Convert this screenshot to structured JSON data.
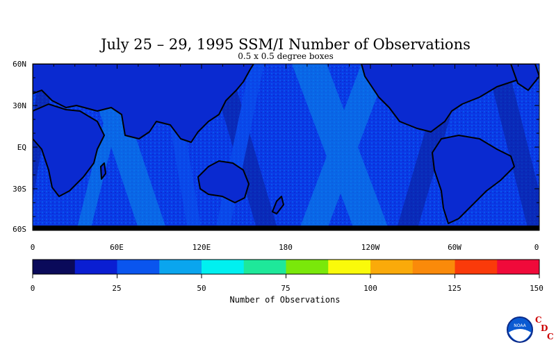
{
  "title": "July 25 – 29, 1995 SSM/I Number of Observations",
  "subtitle": "0.5 x 0.5 degree boxes",
  "y_axis_labels": [
    "60N",
    "30N",
    "EQ",
    "30S",
    "60S"
  ],
  "x_axis_labels": [
    "0",
    "60E",
    "120E",
    "180",
    "120W",
    "60W",
    "0"
  ],
  "colorbar": {
    "title": "Number of Observations",
    "tick_labels": [
      "0",
      "25",
      "50",
      "75",
      "100",
      "125",
      "150"
    ],
    "colors": [
      "#0a0a5a",
      "#0a1ed2",
      "#0a55ee",
      "#0aa5ee",
      "#00f0f0",
      "#1ee89a",
      "#7ae80a",
      "#fafa0a",
      "#faaa0a",
      "#fa8a0a",
      "#fa3a0a",
      "#f00a3a"
    ]
  },
  "logo": {
    "name": "NOAA",
    "letters": [
      "C",
      "D",
      "C"
    ]
  },
  "colors": {
    "ocean_base": "#0a3ae6",
    "swath_light": "#0a8ae8",
    "swath_dark": "#0a1e96",
    "land": "#0a20c0",
    "coast": "#000000",
    "accent_red": "#cc0000"
  }
}
